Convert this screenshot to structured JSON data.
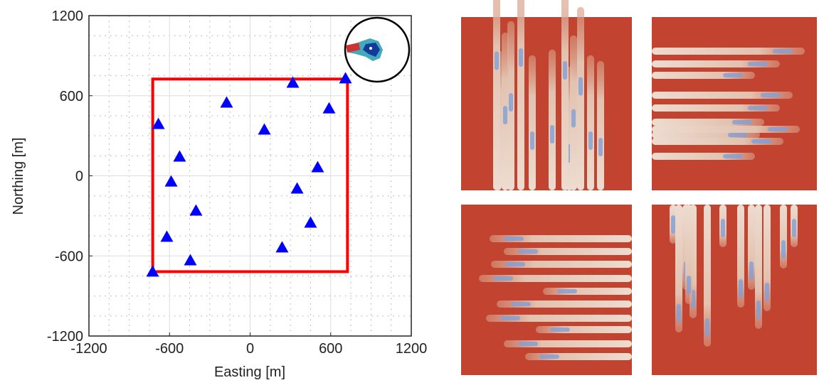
{
  "chart_data": {
    "type": "scatter",
    "xlabel": "Easting [m]",
    "ylabel": "Northing [m]",
    "xlim": [
      -1200,
      1200
    ],
    "ylim": [
      -1200,
      1200
    ],
    "xticks": [
      -1200,
      -600,
      0,
      600,
      1200
    ],
    "yticks": [
      -1200,
      -600,
      0,
      600,
      1200
    ],
    "xminor_ticks": [
      -1050,
      -900,
      -750,
      -450,
      -300,
      -150,
      150,
      300,
      450,
      750,
      900,
      1050
    ],
    "yminor_ticks": [
      -1050,
      -900,
      -750,
      -450,
      -300,
      -150,
      150,
      300,
      450,
      750,
      900,
      1050
    ],
    "grid": true,
    "color": "#0000ff",
    "marker": "triangle",
    "region": {
      "x": [
        -725,
        725
      ],
      "y": [
        -718,
        725
      ],
      "color": "#ff0000"
    },
    "x": [
      710,
      318,
      -175,
      588,
      -683,
      106,
      -525,
      503,
      -588,
      350,
      -403,
      450,
      -620,
      238,
      -445,
      -726
    ],
    "y": [
      730,
      697,
      548,
      505,
      388,
      346,
      144,
      64,
      -43,
      -96,
      -261,
      -351,
      -457,
      -537,
      -633,
      -718
    ]
  }
}
